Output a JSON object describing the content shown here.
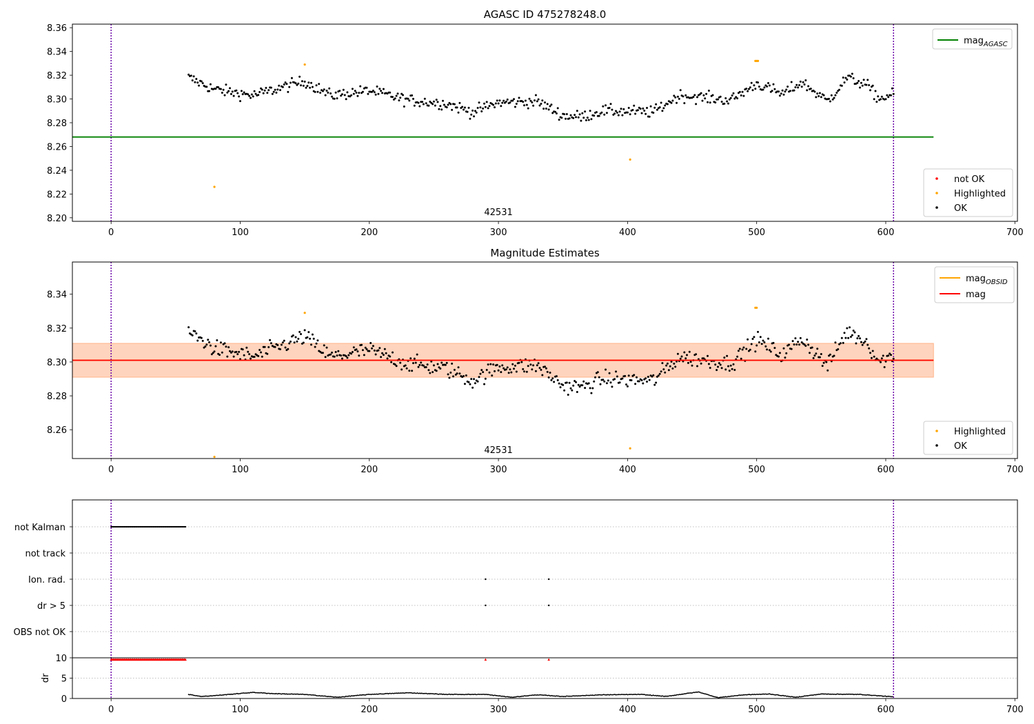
{
  "chart_data": [
    {
      "type": "scatter",
      "title": "AGASC ID 475278248.0",
      "annotation": "42531",
      "xlim": [
        -30,
        702
      ],
      "ylim": [
        8.197,
        8.363
      ],
      "xticks": [
        0,
        100,
        200,
        300,
        400,
        500,
        600,
        700
      ],
      "yticks": [
        8.2,
        8.22,
        8.24,
        8.26,
        8.28,
        8.3,
        8.32,
        8.34,
        8.36
      ],
      "ytick_decimals": 2,
      "vlines": [
        0,
        606
      ],
      "vline_color": "#6a00a8",
      "hlines": [
        {
          "name": "mag_AGASC",
          "y": 8.268,
          "x": [
            -30,
            637
          ],
          "color": "#008000"
        }
      ],
      "legend_lines": [
        {
          "label": "mag",
          "sub": "AGASC",
          "color": "#008000"
        }
      ],
      "legend_points": [
        {
          "label": "not OK",
          "color": "#ff0000"
        },
        {
          "label": "Highlighted",
          "color": "#ffa500"
        },
        {
          "label": "OK",
          "color": "#000000"
        }
      ],
      "ok_trend": {
        "x_start": 60,
        "x_end": 606,
        "step": 1.0,
        "knots": [
          [
            60,
            8.318
          ],
          [
            80,
            8.308
          ],
          [
            110,
            8.303
          ],
          [
            130,
            8.309
          ],
          [
            150,
            8.315
          ],
          [
            170,
            8.303
          ],
          [
            200,
            8.307
          ],
          [
            230,
            8.299
          ],
          [
            260,
            8.296
          ],
          [
            280,
            8.289
          ],
          [
            300,
            8.297
          ],
          [
            330,
            8.298
          ],
          [
            350,
            8.286
          ],
          [
            365,
            8.285
          ],
          [
            380,
            8.29
          ],
          [
            420,
            8.289
          ],
          [
            440,
            8.303
          ],
          [
            480,
            8.299
          ],
          [
            500,
            8.313
          ],
          [
            520,
            8.304
          ],
          [
            535,
            8.314
          ],
          [
            555,
            8.298
          ],
          [
            570,
            8.318
          ],
          [
            585,
            8.312
          ],
          [
            595,
            8.3
          ],
          [
            606,
            8.304
          ]
        ],
        "noise": 0.0045
      },
      "highlighted": [
        [
          80,
          8.226
        ],
        [
          150,
          8.329
        ],
        [
          402,
          8.249
        ],
        [
          499,
          8.332
        ],
        [
          500,
          8.332
        ],
        [
          501,
          8.332
        ]
      ]
    },
    {
      "type": "scatter",
      "title": "Magnitude Estimates",
      "annotation": "42531",
      "xlim": [
        -30,
        702
      ],
      "ylim": [
        8.243,
        8.359
      ],
      "xticks": [
        0,
        100,
        200,
        300,
        400,
        500,
        600,
        700
      ],
      "yticks": [
        8.26,
        8.28,
        8.3,
        8.32,
        8.34
      ],
      "ytick_decimals": 2,
      "vlines": [
        0,
        606
      ],
      "vline_color": "#6a00a8",
      "bands": [
        {
          "y": [
            8.291,
            8.311
          ],
          "x": [
            -30,
            637
          ],
          "color": "#ff9aa8",
          "opacity": 0.25
        },
        {
          "y": [
            8.291,
            8.311
          ],
          "x": [
            -30,
            637
          ],
          "color": "#ffa040",
          "opacity": 0.25
        }
      ],
      "hlines": [
        {
          "name": "mag_OBSID",
          "y": 8.301,
          "x": [
            -30,
            637
          ],
          "color": "#ffa500"
        },
        {
          "name": "mag",
          "y": 8.301,
          "x": [
            -30,
            637
          ],
          "color": "#ff0000"
        }
      ],
      "legend_lines": [
        {
          "label": "mag",
          "sub": "OBSID",
          "color": "#ffa500"
        },
        {
          "label": "mag",
          "sub": "",
          "color": "#ff0000"
        }
      ],
      "legend_points": [
        {
          "label": "Highlighted",
          "color": "#ffa500"
        },
        {
          "label": "OK",
          "color": "#000000"
        }
      ],
      "ok_trend": {
        "x_start": 60,
        "x_end": 606,
        "step": 1.0,
        "knots": [
          [
            60,
            8.318
          ],
          [
            80,
            8.308
          ],
          [
            110,
            8.303
          ],
          [
            130,
            8.309
          ],
          [
            150,
            8.315
          ],
          [
            170,
            8.303
          ],
          [
            200,
            8.307
          ],
          [
            230,
            8.299
          ],
          [
            260,
            8.296
          ],
          [
            280,
            8.289
          ],
          [
            300,
            8.297
          ],
          [
            330,
            8.298
          ],
          [
            350,
            8.286
          ],
          [
            365,
            8.285
          ],
          [
            380,
            8.29
          ],
          [
            420,
            8.289
          ],
          [
            440,
            8.303
          ],
          [
            480,
            8.299
          ],
          [
            500,
            8.313
          ],
          [
            520,
            8.304
          ],
          [
            535,
            8.314
          ],
          [
            555,
            8.298
          ],
          [
            570,
            8.318
          ],
          [
            585,
            8.312
          ],
          [
            595,
            8.3
          ],
          [
            606,
            8.304
          ]
        ],
        "noise": 0.0045
      },
      "highlighted": [
        [
          80,
          8.244
        ],
        [
          150,
          8.329
        ],
        [
          402,
          8.249
        ],
        [
          499,
          8.332
        ],
        [
          500,
          8.332
        ]
      ]
    },
    {
      "type": "scatter",
      "title": "",
      "xlim": [
        -30,
        702
      ],
      "categories": [
        "not Kalman",
        "not track",
        "Ion. rad.",
        "dr > 5",
        "OBS not OK"
      ],
      "flags": {
        "not Kalman": {
          "x_range": [
            0,
            58
          ],
          "step": 0.8
        },
        "Ion. rad.": {
          "x": [
            290,
            339
          ]
        },
        "dr > 5": {
          "x": [
            290,
            339
          ]
        }
      },
      "vlines": [
        0,
        606
      ],
      "vline_color": "#6a00a8"
    },
    {
      "type": "scatter",
      "title": "",
      "ylabel": "dr",
      "xlim": [
        -30,
        702
      ],
      "ylim": [
        0,
        10
      ],
      "xticks": [
        0,
        100,
        200,
        300,
        400,
        500,
        600,
        700
      ],
      "yticks": [
        0,
        5,
        10
      ],
      "ytick_decimals": 0,
      "vlines": [
        0,
        606
      ],
      "vline_color": "#6a00a8",
      "red_markers": {
        "x_range": [
          0,
          58
        ],
        "step": 0.8,
        "y": 9.6,
        "extra_x": [
          290,
          339
        ]
      },
      "dr_trend": {
        "x_start": 60,
        "x_end": 606,
        "step": 0.7,
        "knots": [
          [
            60,
            1.0
          ],
          [
            70,
            0.5
          ],
          [
            80,
            0.7
          ],
          [
            110,
            1.5
          ],
          [
            125,
            1.2
          ],
          [
            150,
            1.0
          ],
          [
            175,
            0.3
          ],
          [
            200,
            1.0
          ],
          [
            230,
            1.4
          ],
          [
            260,
            1.0
          ],
          [
            290,
            1.0
          ],
          [
            310,
            0.3
          ],
          [
            330,
            0.9
          ],
          [
            350,
            0.5
          ],
          [
            380,
            0.9
          ],
          [
            410,
            1.0
          ],
          [
            430,
            0.5
          ],
          [
            445,
            1.2
          ],
          [
            455,
            1.6
          ],
          [
            470,
            0.2
          ],
          [
            490,
            0.9
          ],
          [
            510,
            1.1
          ],
          [
            530,
            0.3
          ],
          [
            550,
            1.1
          ],
          [
            580,
            1.0
          ],
          [
            606,
            0.4
          ]
        ]
      }
    }
  ]
}
